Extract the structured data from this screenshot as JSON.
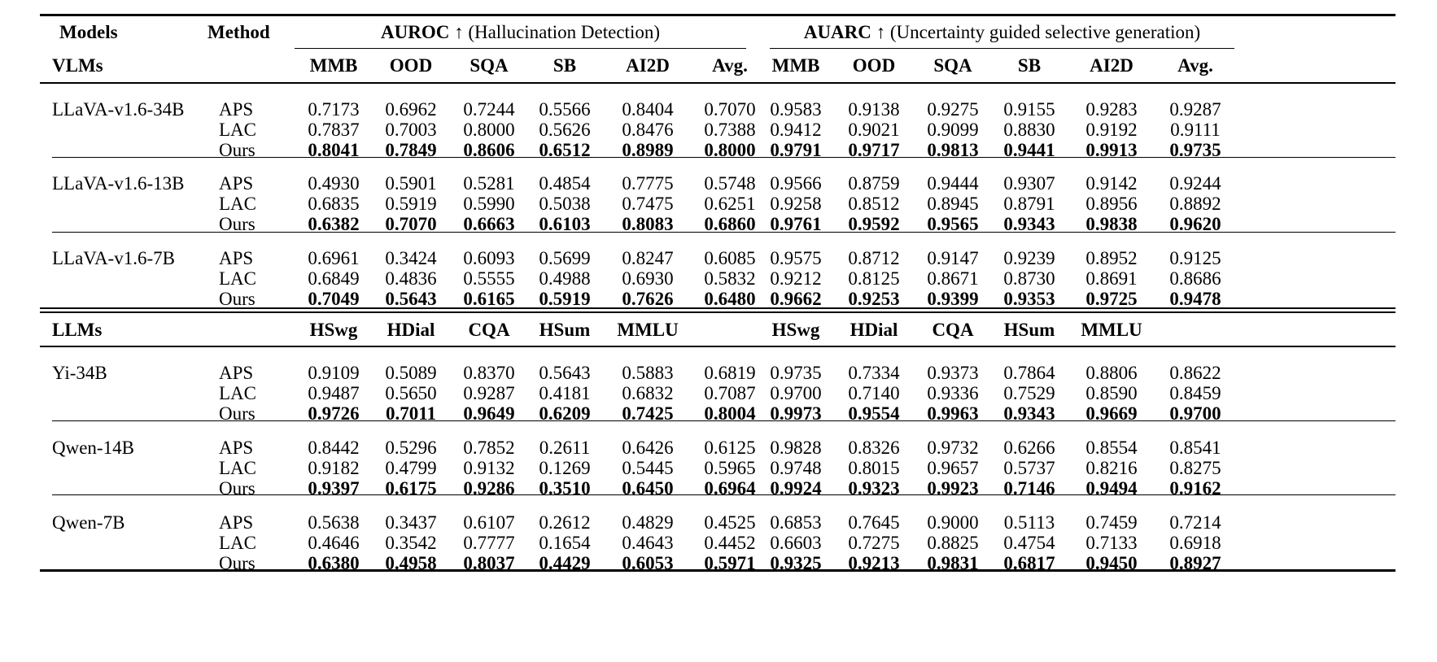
{
  "header": {
    "col_models": "Models",
    "col_method": "Method",
    "group_auroc": {
      "metric": "AUROC",
      "arrow": "↑",
      "desc": "(Hallucination Detection)"
    },
    "group_auarc": {
      "metric": "AUARC",
      "arrow": "↑",
      "desc": "(Uncertainty guided selective generation)"
    }
  },
  "sections": [
    {
      "label": "VLMs",
      "datasets": [
        "MMB",
        "OOD",
        "SQA",
        "SB",
        "AI2D",
        "Avg."
      ],
      "models": [
        {
          "name": "LLaVA-v1.6-34B",
          "rows": [
            {
              "method": "APS",
              "auroc": [
                "0.7173",
                "0.6962",
                "0.7244",
                "0.5566",
                "0.8404",
                "0.7070"
              ],
              "auarc": [
                "0.9583",
                "0.9138",
                "0.9275",
                "0.9155",
                "0.9283",
                "0.9287"
              ]
            },
            {
              "method": "LAC",
              "auroc": [
                "0.7837",
                "0.7003",
                "0.8000",
                "0.5626",
                "0.8476",
                "0.7388"
              ],
              "auarc": [
                "0.9412",
                "0.9021",
                "0.9099",
                "0.8830",
                "0.9192",
                "0.9111"
              ]
            },
            {
              "method": "Ours",
              "auroc": [
                "0.8041",
                "0.7849",
                "0.8606",
                "0.6512",
                "0.8989",
                "0.8000"
              ],
              "auarc": [
                "0.9791",
                "0.9717",
                "0.9813",
                "0.9441",
                "0.9913",
                "0.9735"
              ]
            }
          ]
        },
        {
          "name": "LLaVA-v1.6-13B",
          "rows": [
            {
              "method": "APS",
              "auroc": [
                "0.4930",
                "0.5901",
                "0.5281",
                "0.4854",
                "0.7775",
                "0.5748"
              ],
              "auarc": [
                "0.9566",
                "0.8759",
                "0.9444",
                "0.9307",
                "0.9142",
                "0.9244"
              ]
            },
            {
              "method": "LAC",
              "auroc": [
                "0.6835",
                "0.5919",
                "0.5990",
                "0.5038",
                "0.7475",
                "0.6251"
              ],
              "auarc": [
                "0.9258",
                "0.8512",
                "0.8945",
                "0.8791",
                "0.8956",
                "0.8892"
              ]
            },
            {
              "method": "Ours",
              "auroc": [
                "0.6382",
                "0.7070",
                "0.6663",
                "0.6103",
                "0.8083",
                "0.6860"
              ],
              "auarc": [
                "0.9761",
                "0.9592",
                "0.9565",
                "0.9343",
                "0.9838",
                "0.9620"
              ]
            }
          ]
        },
        {
          "name": "LLaVA-v1.6-7B",
          "rows": [
            {
              "method": "APS",
              "auroc": [
                "0.6961",
                "0.3424",
                "0.6093",
                "0.5699",
                "0.8247",
                "0.6085"
              ],
              "auarc": [
                "0.9575",
                "0.8712",
                "0.9147",
                "0.9239",
                "0.8952",
                "0.9125"
              ]
            },
            {
              "method": "LAC",
              "auroc": [
                "0.6849",
                "0.4836",
                "0.5555",
                "0.4988",
                "0.6930",
                "0.5832"
              ],
              "auarc": [
                "0.9212",
                "0.8125",
                "0.8671",
                "0.8730",
                "0.8691",
                "0.8686"
              ]
            },
            {
              "method": "Ours",
              "auroc": [
                "0.7049",
                "0.5643",
                "0.6165",
                "0.5919",
                "0.7626",
                "0.6480"
              ],
              "auarc": [
                "0.9662",
                "0.9253",
                "0.9399",
                "0.9353",
                "0.9725",
                "0.9478"
              ]
            }
          ]
        }
      ]
    },
    {
      "label": "LLMs",
      "datasets": [
        "HSwg",
        "HDial",
        "CQA",
        "HSum",
        "MMLU",
        ""
      ],
      "models": [
        {
          "name": "Yi-34B",
          "rows": [
            {
              "method": "APS",
              "auroc": [
                "0.9109",
                "0.5089",
                "0.8370",
                "0.5643",
                "0.5883",
                "0.6819"
              ],
              "auarc": [
                "0.9735",
                "0.7334",
                "0.9373",
                "0.7864",
                "0.8806",
                "0.8622"
              ]
            },
            {
              "method": "LAC",
              "auroc": [
                "0.9487",
                "0.5650",
                "0.9287",
                "0.4181",
                "0.6832",
                "0.7087"
              ],
              "auarc": [
                "0.9700",
                "0.7140",
                "0.9336",
                "0.7529",
                "0.8590",
                "0.8459"
              ]
            },
            {
              "method": "Ours",
              "auroc": [
                "0.9726",
                "0.7011",
                "0.9649",
                "0.6209",
                "0.7425",
                "0.8004"
              ],
              "auarc": [
                "0.9973",
                "0.9554",
                "0.9963",
                "0.9343",
                "0.9669",
                "0.9700"
              ]
            }
          ]
        },
        {
          "name": "Qwen-14B",
          "rows": [
            {
              "method": "APS",
              "auroc": [
                "0.8442",
                "0.5296",
                "0.7852",
                "0.2611",
                "0.6426",
                "0.6125"
              ],
              "auarc": [
                "0.9828",
                "0.8326",
                "0.9732",
                "0.6266",
                "0.8554",
                "0.8541"
              ]
            },
            {
              "method": "LAC",
              "auroc": [
                "0.9182",
                "0.4799",
                "0.9132",
                "0.1269",
                "0.5445",
                "0.5965"
              ],
              "auarc": [
                "0.9748",
                "0.8015",
                "0.9657",
                "0.5737",
                "0.8216",
                "0.8275"
              ]
            },
            {
              "method": "Ours",
              "auroc": [
                "0.9397",
                "0.6175",
                "0.9286",
                "0.3510",
                "0.6450",
                "0.6964"
              ],
              "auarc": [
                "0.9924",
                "0.9323",
                "0.9923",
                "0.7146",
                "0.9494",
                "0.9162"
              ]
            }
          ]
        },
        {
          "name": "Qwen-7B",
          "rows": [
            {
              "method": "APS",
              "auroc": [
                "0.5638",
                "0.3437",
                "0.6107",
                "0.2612",
                "0.4829",
                "0.4525"
              ],
              "auarc": [
                "0.6853",
                "0.7645",
                "0.9000",
                "0.5113",
                "0.7459",
                "0.7214"
              ]
            },
            {
              "method": "LAC",
              "auroc": [
                "0.4646",
                "0.3542",
                "0.7777",
                "0.1654",
                "0.4643",
                "0.4452"
              ],
              "auarc": [
                "0.6603",
                "0.7275",
                "0.8825",
                "0.4754",
                "0.7133",
                "0.6918"
              ]
            },
            {
              "method": "Ours",
              "auroc": [
                "0.6380",
                "0.4958",
                "0.8037",
                "0.4429",
                "0.6053",
                "0.5971"
              ],
              "auarc": [
                "0.9325",
                "0.9213",
                "0.9831",
                "0.6817",
                "0.9450",
                "0.8927"
              ]
            }
          ]
        }
      ]
    }
  ]
}
